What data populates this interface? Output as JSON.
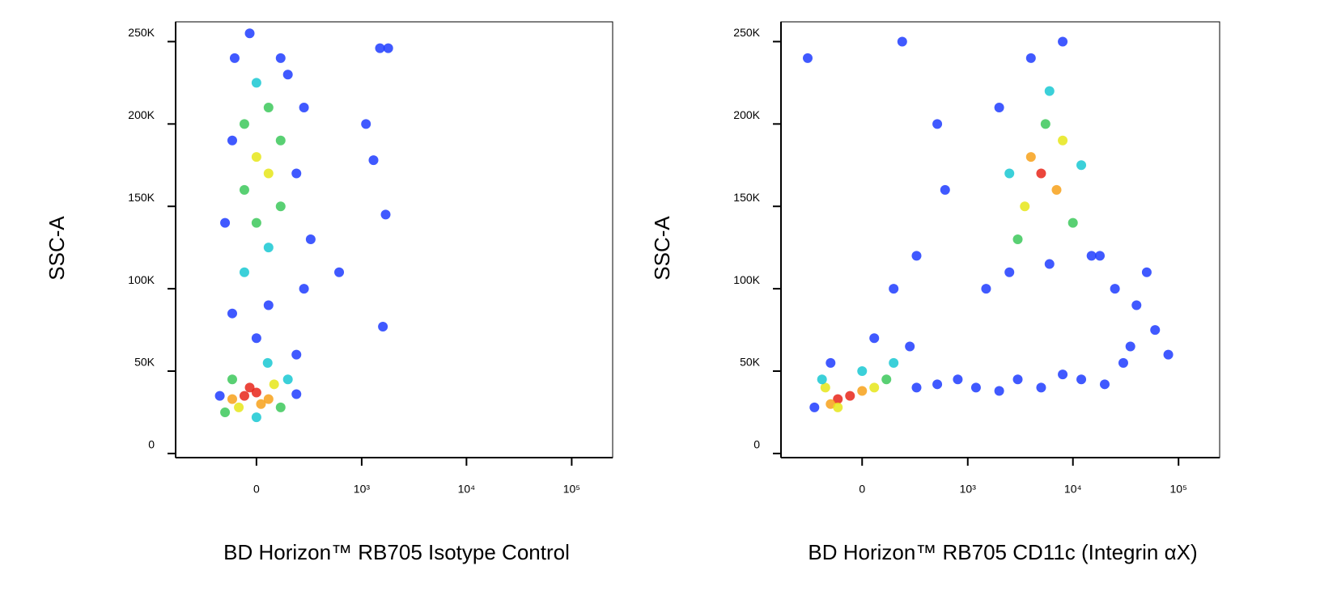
{
  "chart_data": [
    {
      "type": "scatter",
      "xlabel": "BD Horizon™ RB705 Isotype Control",
      "ylabel": "SSC-A",
      "xscale": "biexponential",
      "xlim": [
        -575,
        245000
      ],
      "ylim": [
        -2500,
        262000
      ],
      "xticks": [
        0,
        {
          "value": 1000,
          "label": "10³"
        },
        {
          "value": 10000,
          "label": "10⁴"
        },
        {
          "value": 100000,
          "label": "10⁵"
        }
      ],
      "yticks": [
        {
          "value": 0,
          "label": "0"
        },
        {
          "value": 50000,
          "label": "50K"
        },
        {
          "value": 100000,
          "label": "100K"
        },
        {
          "value": 150000,
          "label": "150K"
        },
        {
          "value": 200000,
          "label": "200K"
        },
        {
          "value": 250000,
          "label": "250K"
        }
      ],
      "x": [
        -54,
        0,
        -112,
        54,
        -30,
        20,
        -80,
        80,
        -150,
        112,
        -112,
        150,
        0,
        -180,
        200,
        50,
        0,
        54,
        -54,
        54,
        0,
        112,
        -54,
        54,
        0,
        112,
        -54,
        54,
        0,
        112,
        -30,
        150,
        -112,
        200,
        -150,
        250,
        200,
        -112,
        300,
        250,
        -100,
        1600,
        1100,
        1300,
        1700,
        1500,
        1800,
        600
      ],
      "y": [
        35000,
        37000,
        33000,
        33000,
        40000,
        30000,
        28000,
        42000,
        25000,
        28000,
        45000,
        45000,
        22000,
        35000,
        36000,
        55000,
        70000,
        90000,
        110000,
        125000,
        140000,
        150000,
        160000,
        170000,
        180000,
        190000,
        200000,
        210000,
        225000,
        240000,
        255000,
        230000,
        190000,
        170000,
        140000,
        100000,
        60000,
        85000,
        130000,
        210000,
        240000,
        77000,
        200000,
        178000,
        145000,
        246000,
        246000,
        110000
      ],
      "colors": [
        "#e8261a",
        "#e8261a",
        "#f7a11a",
        "#f7a11a",
        "#e8261a",
        "#f7a11a",
        "#e6e619",
        "#e6e619",
        "#3cc85a",
        "#3cc85a",
        "#3cc85a",
        "#19c8d2",
        "#19c8d2",
        "#1e3cff",
        "#1e3cff",
        "#19c8d2",
        "#1e3cff",
        "#1e3cff",
        "#19c8d2",
        "#19c8d2",
        "#3cc85a",
        "#3cc85a",
        "#3cc85a",
        "#e6e619",
        "#e6e619",
        "#3cc85a",
        "#3cc85a",
        "#3cc85a",
        "#19c8d2",
        "#1e3cff",
        "#1e3cff",
        "#1e3cff",
        "#1e3cff",
        "#1e3cff",
        "#1e3cff",
        "#1e3cff",
        "#1e3cff",
        "#1e3cff",
        "#1e3cff",
        "#1e3cff",
        "#1e3cff",
        "#1e3cff",
        "#1e3cff",
        "#1e3cff",
        "#1e3cff",
        "#1e3cff",
        "#1e3cff",
        "#1e3cff"
      ]
    },
    {
      "type": "scatter",
      "xlabel": "BD Horizon™ RB705 CD11c (Integrin αX)",
      "ylabel": "SSC-A",
      "xscale": "biexponential",
      "xlim": [
        -575,
        245000
      ],
      "ylim": [
        -2500,
        262000
      ],
      "xticks": [
        0,
        {
          "value": 1000,
          "label": "10³"
        },
        {
          "value": 10000,
          "label": "10⁴"
        },
        {
          "value": 100000,
          "label": "10⁵"
        }
      ],
      "yticks": [
        {
          "value": 0,
          "label": "0"
        },
        {
          "value": 50000,
          "label": "50K"
        },
        {
          "value": 100000,
          "label": "100K"
        },
        {
          "value": 150000,
          "label": "150K"
        },
        {
          "value": 200000,
          "label": "200K"
        },
        {
          "value": 250000,
          "label": "250K"
        }
      ],
      "x": [
        -54,
        -112,
        0,
        -150,
        54,
        -180,
        -112,
        112,
        -200,
        150,
        0,
        -250,
        250,
        300,
        54,
        -150,
        500,
        800,
        1200,
        2000,
        3000,
        5000,
        8000,
        12000,
        20000,
        30000,
        25000,
        40000,
        60000,
        35000,
        50000,
        80000,
        18000,
        5000,
        4000,
        7000,
        3500,
        8000,
        5500,
        3000,
        10000,
        2500,
        12000,
        6000,
        4000,
        8000,
        2000,
        15000,
        6000,
        2500,
        300,
        500,
        200,
        -300,
        600,
        1500,
        150
      ],
      "y": [
        35000,
        33000,
        38000,
        30000,
        40000,
        40000,
        28000,
        45000,
        45000,
        55000,
        50000,
        28000,
        65000,
        40000,
        70000,
        55000,
        42000,
        45000,
        40000,
        38000,
        45000,
        40000,
        48000,
        45000,
        42000,
        55000,
        100000,
        90000,
        75000,
        65000,
        110000,
        60000,
        120000,
        170000,
        180000,
        160000,
        150000,
        190000,
        200000,
        130000,
        140000,
        170000,
        175000,
        220000,
        240000,
        250000,
        210000,
        120000,
        115000,
        110000,
        120000,
        200000,
        250000,
        240000,
        160000,
        100000,
        100000
      ],
      "colors": [
        "#e8261a",
        "#e8261a",
        "#f7a11a",
        "#f7a11a",
        "#e6e619",
        "#e6e619",
        "#e6e619",
        "#3cc85a",
        "#19c8d2",
        "#19c8d2",
        "#19c8d2",
        "#1e3cff",
        "#1e3cff",
        "#1e3cff",
        "#1e3cff",
        "#1e3cff",
        "#1e3cff",
        "#1e3cff",
        "#1e3cff",
        "#1e3cff",
        "#1e3cff",
        "#1e3cff",
        "#1e3cff",
        "#1e3cff",
        "#1e3cff",
        "#1e3cff",
        "#1e3cff",
        "#1e3cff",
        "#1e3cff",
        "#1e3cff",
        "#1e3cff",
        "#1e3cff",
        "#1e3cff",
        "#e8261a",
        "#f7a11a",
        "#f7a11a",
        "#e6e619",
        "#e6e619",
        "#3cc85a",
        "#3cc85a",
        "#3cc85a",
        "#19c8d2",
        "#19c8d2",
        "#19c8d2",
        "#1e3cff",
        "#1e3cff",
        "#1e3cff",
        "#1e3cff",
        "#1e3cff",
        "#1e3cff",
        "#1e3cff",
        "#1e3cff",
        "#1e3cff",
        "#1e3cff",
        "#1e3cff",
        "#1e3cff",
        "#1e3cff"
      ]
    }
  ]
}
